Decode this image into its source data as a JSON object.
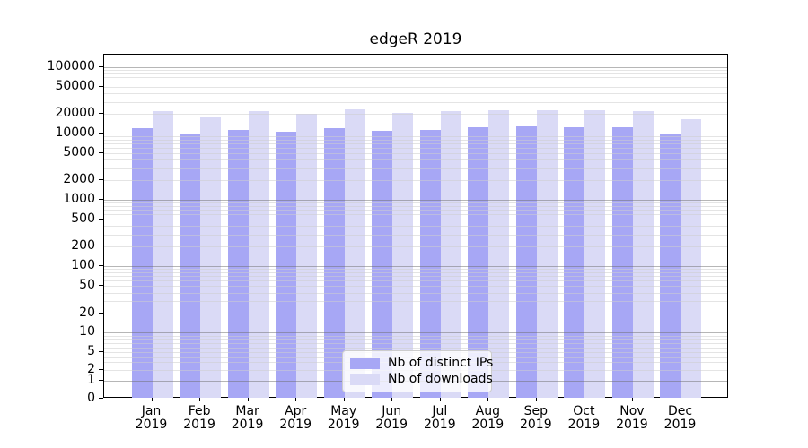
{
  "chart_data": {
    "type": "bar",
    "title": "edgeR 2019",
    "categories": [
      "Jan",
      "Feb",
      "Mar",
      "Apr",
      "May",
      "Jun",
      "Jul",
      "Aug",
      "Sep",
      "Oct",
      "Nov",
      "Dec"
    ],
    "year_label": "2019",
    "series": [
      {
        "name": "Nb of distinct IPs",
        "key": "distinct-ips",
        "color": "#a7a7f5",
        "values": [
          11800,
          9800,
          11400,
          10600,
          12000,
          11000,
          11400,
          12200,
          12600,
          12200,
          12300,
          9700
        ]
      },
      {
        "name": "Nb of downloads",
        "key": "downloads",
        "color": "#dadaf6",
        "values": [
          21600,
          17600,
          21700,
          19800,
          23300,
          20400,
          22100,
          22300,
          22300,
          22500,
          21800,
          16500
        ]
      }
    ],
    "y_ticks": [
      0,
      1,
      2,
      5,
      10,
      20,
      50,
      100,
      200,
      500,
      1000,
      2000,
      5000,
      10000,
      20000,
      50000,
      100000
    ],
    "y_scale": "log (1-2-5 ticks) with 0 baseline",
    "xlabel": "",
    "ylabel": "",
    "grid": "horizontal; dark gray at powers of 10, light gray minors",
    "legend_position": "bottom-center"
  }
}
